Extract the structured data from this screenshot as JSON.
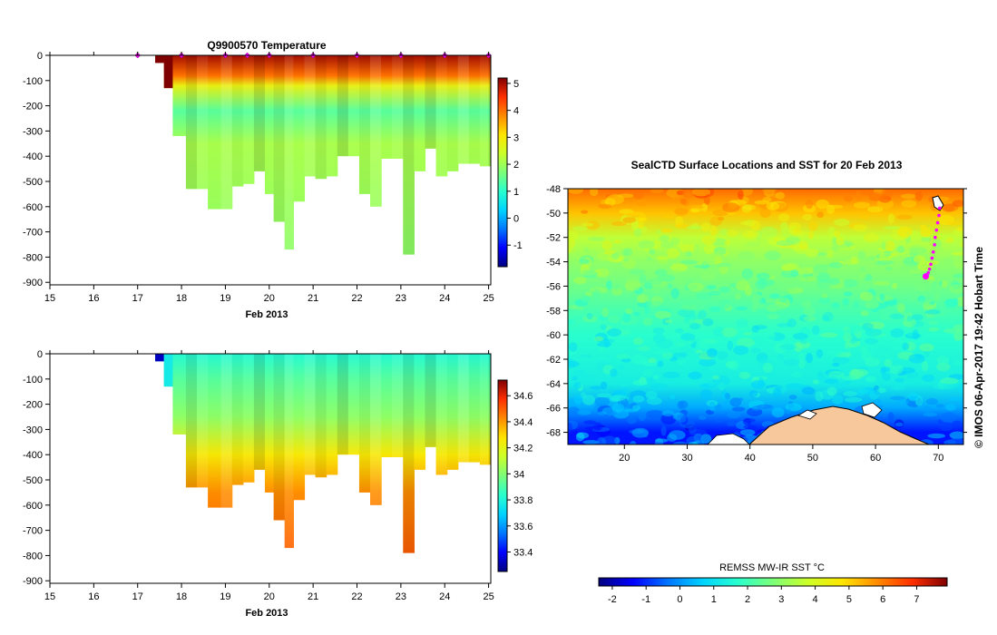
{
  "colors": {
    "jet": [
      "#00007f",
      "#0000ff",
      "#0077ff",
      "#00d4ff",
      "#29ffcd",
      "#7cff79",
      "#ccff29",
      "#ffe500",
      "#ff8a00",
      "#ff2f00",
      "#7f0000"
    ],
    "land": "#f7c89b",
    "profile_marker": "#ff00ff"
  },
  "chart_data": [
    {
      "id": "temperature-section",
      "type": "heatmap",
      "title": "Q9900570  Temperature",
      "xlabel": "Feb 2013",
      "ylabel": "",
      "xlim": [
        15,
        25.05
      ],
      "ylim": [
        -910,
        0
      ],
      "xticks": [
        15,
        16,
        17,
        18,
        19,
        20,
        21,
        22,
        23,
        24,
        25
      ],
      "yticks": [
        0,
        -100,
        -200,
        -300,
        -400,
        -500,
        -600,
        -700,
        -800,
        -900
      ],
      "colorbar": {
        "range": [
          -1.8,
          5.2
        ],
        "ticks": [
          -1,
          0,
          1,
          2,
          3,
          4,
          5
        ]
      },
      "surface_markers_x": [
        17,
        18,
        19,
        19.5,
        20,
        21,
        22,
        23,
        24,
        25
      ],
      "profile_times": [
        17.4,
        17.6,
        17.8,
        18.1,
        18.35,
        18.6,
        18.9,
        19.15,
        19.4,
        19.65,
        19.9,
        20.1,
        20.35,
        20.55,
        20.8,
        21.05,
        21.3,
        21.55,
        21.8,
        22.05,
        22.3,
        22.55,
        22.8,
        23.05,
        23.3,
        23.55,
        23.8,
        24.05,
        24.3,
        24.55,
        24.8,
        25.0
      ],
      "profile_max_depth": [
        -30,
        -130,
        -320,
        -530,
        -530,
        -610,
        -610,
        -520,
        -510,
        -460,
        -550,
        -660,
        -770,
        -580,
        -480,
        -490,
        -480,
        -400,
        -400,
        -550,
        -600,
        -410,
        -410,
        -790,
        -460,
        -370,
        -480,
        -460,
        -430,
        -430,
        -440,
        -440
      ],
      "color_stops": [
        [
          0,
          5.0
        ],
        [
          -80,
          4.0
        ],
        [
          -120,
          2.8
        ],
        [
          -220,
          1.4
        ],
        [
          -350,
          2.1
        ],
        [
          -900,
          1.8
        ]
      ]
    },
    {
      "id": "salinity-section",
      "type": "heatmap",
      "title": "",
      "xlabel": "Feb 2013",
      "ylabel": "",
      "xlim": [
        15,
        25.05
      ],
      "ylim": [
        -910,
        0
      ],
      "xticks": [
        15,
        16,
        17,
        18,
        19,
        20,
        21,
        22,
        23,
        24,
        25
      ],
      "yticks": [
        0,
        -100,
        -200,
        -300,
        -400,
        -500,
        -600,
        -700,
        -800,
        -900
      ],
      "colorbar": {
        "range": [
          33.25,
          34.72
        ],
        "ticks": [
          33.4,
          33.6,
          33.8,
          34,
          34.2,
          34.4,
          34.6
        ]
      },
      "color_stops": [
        [
          0,
          33.82
        ],
        [
          -100,
          33.92
        ],
        [
          -250,
          34.02
        ],
        [
          -400,
          34.26
        ],
        [
          -550,
          34.42
        ],
        [
          -800,
          34.5
        ]
      ]
    },
    {
      "id": "sst-map",
      "type": "heatmap",
      "title": "SealCTD Surface Locations and SST for 20 Feb 2013",
      "xlabel": "",
      "ylabel": "",
      "xlim": [
        11,
        74
      ],
      "ylim": [
        -69,
        -48
      ],
      "xticks": [
        20,
        30,
        40,
        50,
        60,
        70
      ],
      "yticks": [
        -48,
        -50,
        -52,
        -54,
        -56,
        -58,
        -60,
        -62,
        -64,
        -66,
        -68
      ],
      "sst_by_latitude": [
        [
          -48,
          6.2
        ],
        [
          -50,
          5.2
        ],
        [
          -52,
          3.6
        ],
        [
          -54,
          3.0
        ],
        [
          -56,
          2.6
        ],
        [
          -58,
          2.1
        ],
        [
          -60,
          1.7
        ],
        [
          -62,
          1.5
        ],
        [
          -64,
          1.3
        ],
        [
          -66,
          0.2
        ],
        [
          -68,
          -1.2
        ]
      ],
      "track_lon": [
        70.2,
        70.1,
        69.9,
        69.7,
        69.5,
        69.4,
        69.2,
        69.0,
        68.8,
        68.6,
        68.4,
        68.2,
        68.0
      ],
      "track_lat": [
        -49.6,
        -50.2,
        -50.8,
        -51.4,
        -52.0,
        -52.6,
        -53.2,
        -53.7,
        -54.2,
        -54.6,
        -54.9,
        -55.1,
        -55.2
      ],
      "colorbar_label": "REMSS MW-IR SST °C",
      "colorbar": {
        "range": [
          -2.4,
          7.9
        ],
        "ticks": [
          -2,
          -1,
          0,
          1,
          2,
          3,
          4,
          5,
          6,
          7
        ]
      },
      "stamp": "© IMOS 06-Apr-2017 19:42 Hobart Time"
    }
  ]
}
